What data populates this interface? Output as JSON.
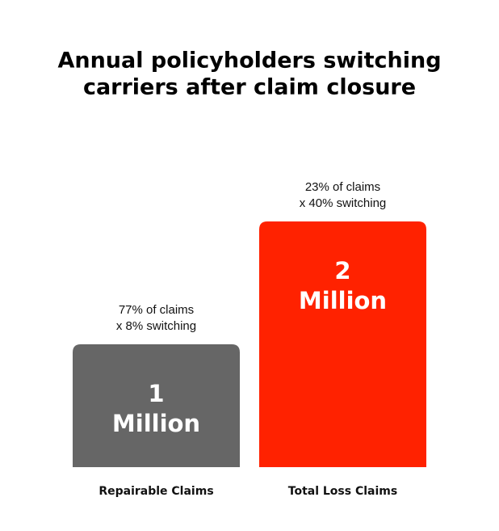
{
  "chart_data": {
    "type": "bar",
    "title": [
      "Annual policyholders switching",
      "carriers after claim closure"
    ],
    "categories": [
      "Repairable Claims",
      "Total Loss Claims"
    ],
    "values": [
      1,
      2
    ],
    "value_labels": [
      "1 Million",
      "2 Million"
    ],
    "annotations": [
      [
        "77% of claims",
        "x 8% switching"
      ],
      [
        "23% of claims",
        "x 40% switching"
      ]
    ],
    "colors": [
      "#666666",
      "#ff2200"
    ]
  }
}
